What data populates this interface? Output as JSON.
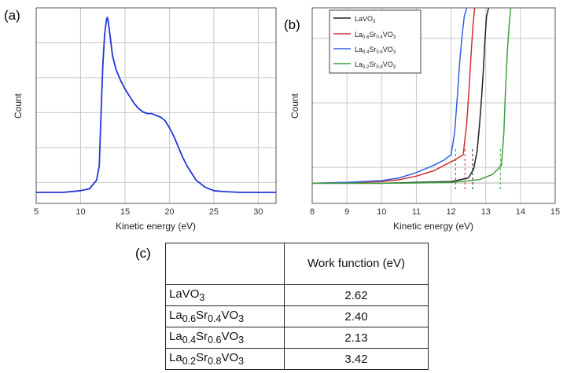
{
  "panel_labels": {
    "a": "(a)",
    "b": "(b)",
    "c": "(c)"
  },
  "colors": {
    "lavo3": "#222222",
    "sr04": "#d03030",
    "sr06": "#3060e0",
    "sr08": "#40a040",
    "panel_a": "#2236d8"
  },
  "chart_data": [
    {
      "type": "line",
      "panel": "(a)",
      "xlabel": "Kinetic energy (eV)",
      "ylabel": "Count",
      "xlim": [
        5,
        32
      ],
      "xticks": [
        "5",
        "10",
        "15",
        "20",
        "25",
        "30"
      ],
      "grid": true,
      "series": [
        {
          "x": [
            5,
            8,
            10,
            11,
            11.8,
            12.1,
            12.3,
            12.5,
            12.7,
            12.9,
            13.0,
            13.1,
            13.3,
            13.6,
            14.0,
            14.5,
            15.0,
            15.5,
            16.0,
            16.5,
            17.0,
            17.5,
            18.0,
            18.5,
            19.0,
            19.5,
            20.0,
            20.5,
            21.0,
            21.5,
            22.0,
            22.5,
            23.0,
            23.5,
            24.0,
            25.0,
            26.0,
            28.0,
            30.0,
            32.0
          ],
          "y": [
            0.0,
            0.0,
            0.01,
            0.02,
            0.07,
            0.15,
            0.45,
            0.72,
            0.9,
            0.98,
            1.0,
            0.98,
            0.9,
            0.78,
            0.7,
            0.64,
            0.59,
            0.55,
            0.51,
            0.48,
            0.46,
            0.45,
            0.45,
            0.44,
            0.43,
            0.41,
            0.37,
            0.32,
            0.26,
            0.2,
            0.15,
            0.11,
            0.07,
            0.05,
            0.03,
            0.01,
            0.005,
            0.0,
            0.0,
            0.0
          ]
        }
      ]
    },
    {
      "type": "line",
      "panel": "(b)",
      "xlabel": "Kinetic energy (eV)",
      "ylabel": "Count",
      "xlim": [
        8,
        15
      ],
      "xticks": [
        "8",
        "9",
        "10",
        "11",
        "12",
        "13",
        "14",
        "15"
      ],
      "grid": true,
      "legend_position": "top-left",
      "series": [
        {
          "name": "LaVO3",
          "name_parts": {
            "base": "LaVO",
            "sub3": "3"
          },
          "color_key": "lavo3",
          "x": [
            8,
            10,
            11,
            12,
            12.5,
            12.65,
            12.75,
            12.82,
            12.88,
            12.93,
            12.97,
            13.02,
            13.08
          ],
          "y": [
            0.02,
            0.02,
            0.025,
            0.03,
            0.05,
            0.1,
            0.2,
            0.35,
            0.5,
            0.65,
            0.8,
            0.95,
            1.05
          ]
        },
        {
          "name": "La0.6Sr0.4VO3",
          "color_key": "sr04",
          "x": [
            8,
            9,
            10,
            10.5,
            11,
            11.5,
            11.8,
            12.1,
            12.35,
            12.45,
            12.52,
            12.58,
            12.63,
            12.68
          ],
          "y": [
            0.02,
            0.025,
            0.03,
            0.04,
            0.06,
            0.09,
            0.12,
            0.15,
            0.18,
            0.35,
            0.55,
            0.75,
            0.9,
            1.05
          ]
        },
        {
          "name": "La0.4Sr0.6VO3",
          "color_key": "sr06",
          "x": [
            8,
            9,
            10,
            10.5,
            11,
            11.5,
            11.8,
            12.0,
            12.1,
            12.18,
            12.25,
            12.32,
            12.38,
            12.45
          ],
          "y": [
            0.02,
            0.025,
            0.035,
            0.05,
            0.08,
            0.12,
            0.15,
            0.18,
            0.3,
            0.5,
            0.7,
            0.85,
            0.95,
            1.05
          ]
        },
        {
          "name": "La0.2Sr0.8VO3",
          "color_key": "sr08",
          "x": [
            8,
            10,
            11,
            12,
            12.8,
            13.2,
            13.45,
            13.52,
            13.57,
            13.62,
            13.67,
            13.72
          ],
          "y": [
            0.02,
            0.02,
            0.022,
            0.025,
            0.04,
            0.07,
            0.12,
            0.3,
            0.55,
            0.75,
            0.9,
            1.05
          ]
        }
      ],
      "cutoff_markers": [
        {
          "color_key": "sr06",
          "x": 12.13
        },
        {
          "color_key": "sr04",
          "x": 12.4
        },
        {
          "color_key": "lavo3",
          "x": 12.62
        },
        {
          "color_key": "sr08",
          "x": 13.42
        }
      ]
    }
  ],
  "table": {
    "header": "Work function (eV)",
    "rows": [
      {
        "name": "LaVO3",
        "value": "2.62"
      },
      {
        "name": "La0.6Sr0.4VO3",
        "value": "2.40"
      },
      {
        "name": "La0.4Sr0.6VO3",
        "value": "2.13"
      },
      {
        "name": "La0.2Sr0.8VO3",
        "value": "3.42"
      }
    ]
  }
}
